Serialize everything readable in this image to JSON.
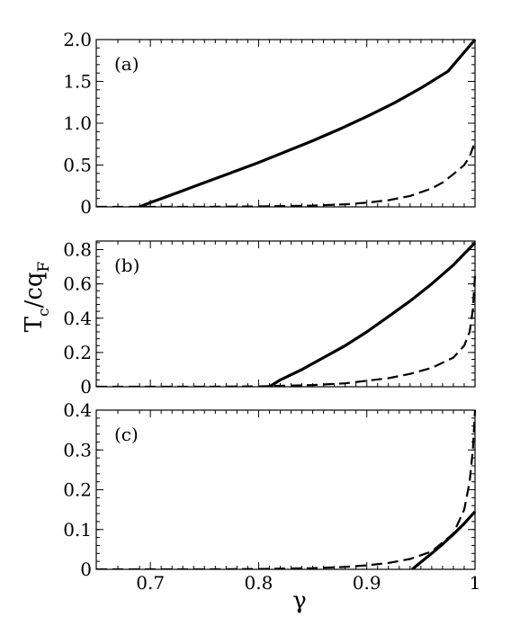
{
  "ylabel": {
    "main": "T",
    "sub1": "c",
    "mid": "/cq",
    "sub2": "F"
  },
  "xlabel": "γ",
  "x_tick_labels": [
    "0.7",
    "0.8",
    "0.9",
    "1"
  ],
  "chart_data": [
    {
      "type": "line",
      "panel_label": "(a)",
      "xlim": [
        0.65,
        1.0
      ],
      "ylim": [
        0,
        2.0
      ],
      "y_tick_labels": [
        "0",
        "0.5",
        "1.0",
        "1.5",
        "2.0"
      ],
      "y_ticks": [
        0,
        0.5,
        1.0,
        1.5,
        2.0
      ],
      "series": [
        {
          "style": "solid",
          "x": [
            0.69,
            0.7,
            0.725,
            0.75,
            0.775,
            0.8,
            0.825,
            0.85,
            0.875,
            0.9,
            0.925,
            0.95,
            0.975,
            1.0
          ],
          "y": [
            0.0,
            0.05,
            0.17,
            0.29,
            0.41,
            0.53,
            0.66,
            0.79,
            0.93,
            1.08,
            1.24,
            1.42,
            1.62,
            2.0
          ]
        },
        {
          "style": "dashed",
          "x": [
            0.65,
            0.7,
            0.75,
            0.8,
            0.85,
            0.88,
            0.9,
            0.92,
            0.94,
            0.96,
            0.97,
            0.98,
            0.99,
            0.995,
            1.0
          ],
          "y": [
            0.0,
            0.0,
            0.0,
            0.005,
            0.015,
            0.03,
            0.05,
            0.08,
            0.13,
            0.22,
            0.29,
            0.39,
            0.5,
            0.6,
            0.78
          ]
        }
      ]
    },
    {
      "type": "line",
      "panel_label": "(b)",
      "xlim": [
        0.65,
        1.0
      ],
      "ylim": [
        0,
        0.85
      ],
      "y_tick_labels": [
        "0",
        "0.2",
        "0.4",
        "0.6",
        "0.8"
      ],
      "y_ticks": [
        0,
        0.2,
        0.4,
        0.6,
        0.8
      ],
      "series": [
        {
          "style": "solid",
          "x": [
            0.81,
            0.82,
            0.84,
            0.86,
            0.88,
            0.9,
            0.92,
            0.94,
            0.96,
            0.98,
            1.0
          ],
          "y": [
            0.0,
            0.04,
            0.1,
            0.17,
            0.24,
            0.32,
            0.41,
            0.5,
            0.6,
            0.71,
            0.84
          ]
        },
        {
          "style": "dashed",
          "x": [
            0.65,
            0.75,
            0.8,
            0.85,
            0.88,
            0.9,
            0.92,
            0.94,
            0.96,
            0.98,
            0.99,
            0.995,
            0.998,
            1.0
          ],
          "y": [
            0.0,
            0.0,
            0.002,
            0.01,
            0.02,
            0.035,
            0.05,
            0.075,
            0.11,
            0.17,
            0.24,
            0.32,
            0.45,
            0.65
          ]
        }
      ]
    },
    {
      "type": "line",
      "panel_label": "(c)",
      "xlim": [
        0.65,
        1.0
      ],
      "ylim": [
        0,
        0.4
      ],
      "y_tick_labels": [
        "0",
        "0.1",
        "0.2",
        "0.3",
        "0.4"
      ],
      "y_ticks": [
        0,
        0.1,
        0.2,
        0.3,
        0.4
      ],
      "series": [
        {
          "style": "solid",
          "x": [
            0.942,
            0.95,
            0.96,
            0.97,
            0.98,
            0.99,
            1.0
          ],
          "y": [
            0.0,
            0.018,
            0.04,
            0.063,
            0.088,
            0.115,
            0.145
          ]
        },
        {
          "style": "dashed",
          "x": [
            0.65,
            0.75,
            0.8,
            0.85,
            0.88,
            0.9,
            0.92,
            0.94,
            0.96,
            0.98,
            0.99,
            0.995,
            0.998,
            1.0
          ],
          "y": [
            0.0,
            0.0,
            0.001,
            0.003,
            0.006,
            0.01,
            0.016,
            0.026,
            0.045,
            0.09,
            0.15,
            0.22,
            0.3,
            0.4
          ]
        }
      ]
    }
  ]
}
